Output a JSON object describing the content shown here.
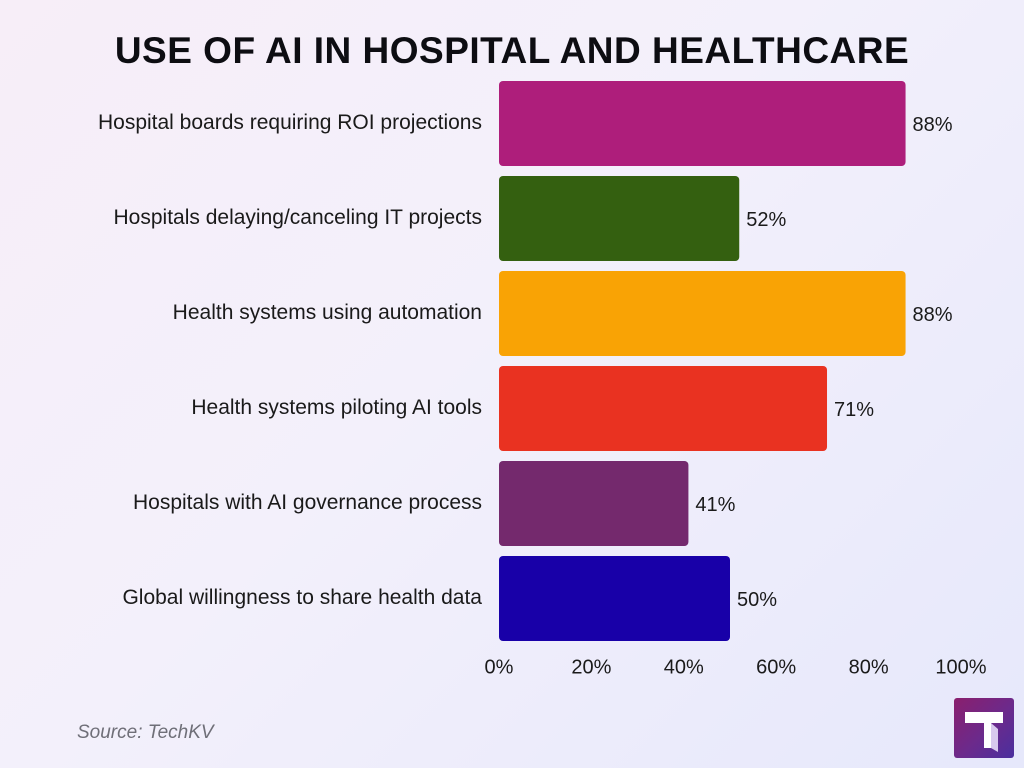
{
  "chart_data": {
    "type": "bar",
    "orientation": "horizontal",
    "title": "USE OF AI IN HOSPITAL AND HEALTHCARE",
    "categories": [
      "Hospital boards requiring ROI projections",
      "Hospitals delaying/canceling IT projects",
      "Health systems using automation",
      "Health systems piloting AI tools",
      "Hospitals with AI governance process",
      "Global willingness to share health data"
    ],
    "values": [
      88,
      52,
      88,
      71,
      41,
      50
    ],
    "value_labels": [
      "88%",
      "52%",
      "88%",
      "71%",
      "41%",
      "50%"
    ],
    "colors": [
      "#ae1e7b",
      "#346010",
      "#f9a305",
      "#e93221",
      "#74296d",
      "#1800a8"
    ],
    "xlim": [
      0,
      100
    ],
    "x_ticks": [
      0,
      20,
      40,
      60,
      80,
      100
    ],
    "x_tick_labels": [
      "0%",
      "20%",
      "40%",
      "60%",
      "80%",
      "100%"
    ],
    "grid": false,
    "legend": "none"
  },
  "footer": {
    "source": "Source: TechKV",
    "logo_icon": "techkv-logo-icon"
  }
}
